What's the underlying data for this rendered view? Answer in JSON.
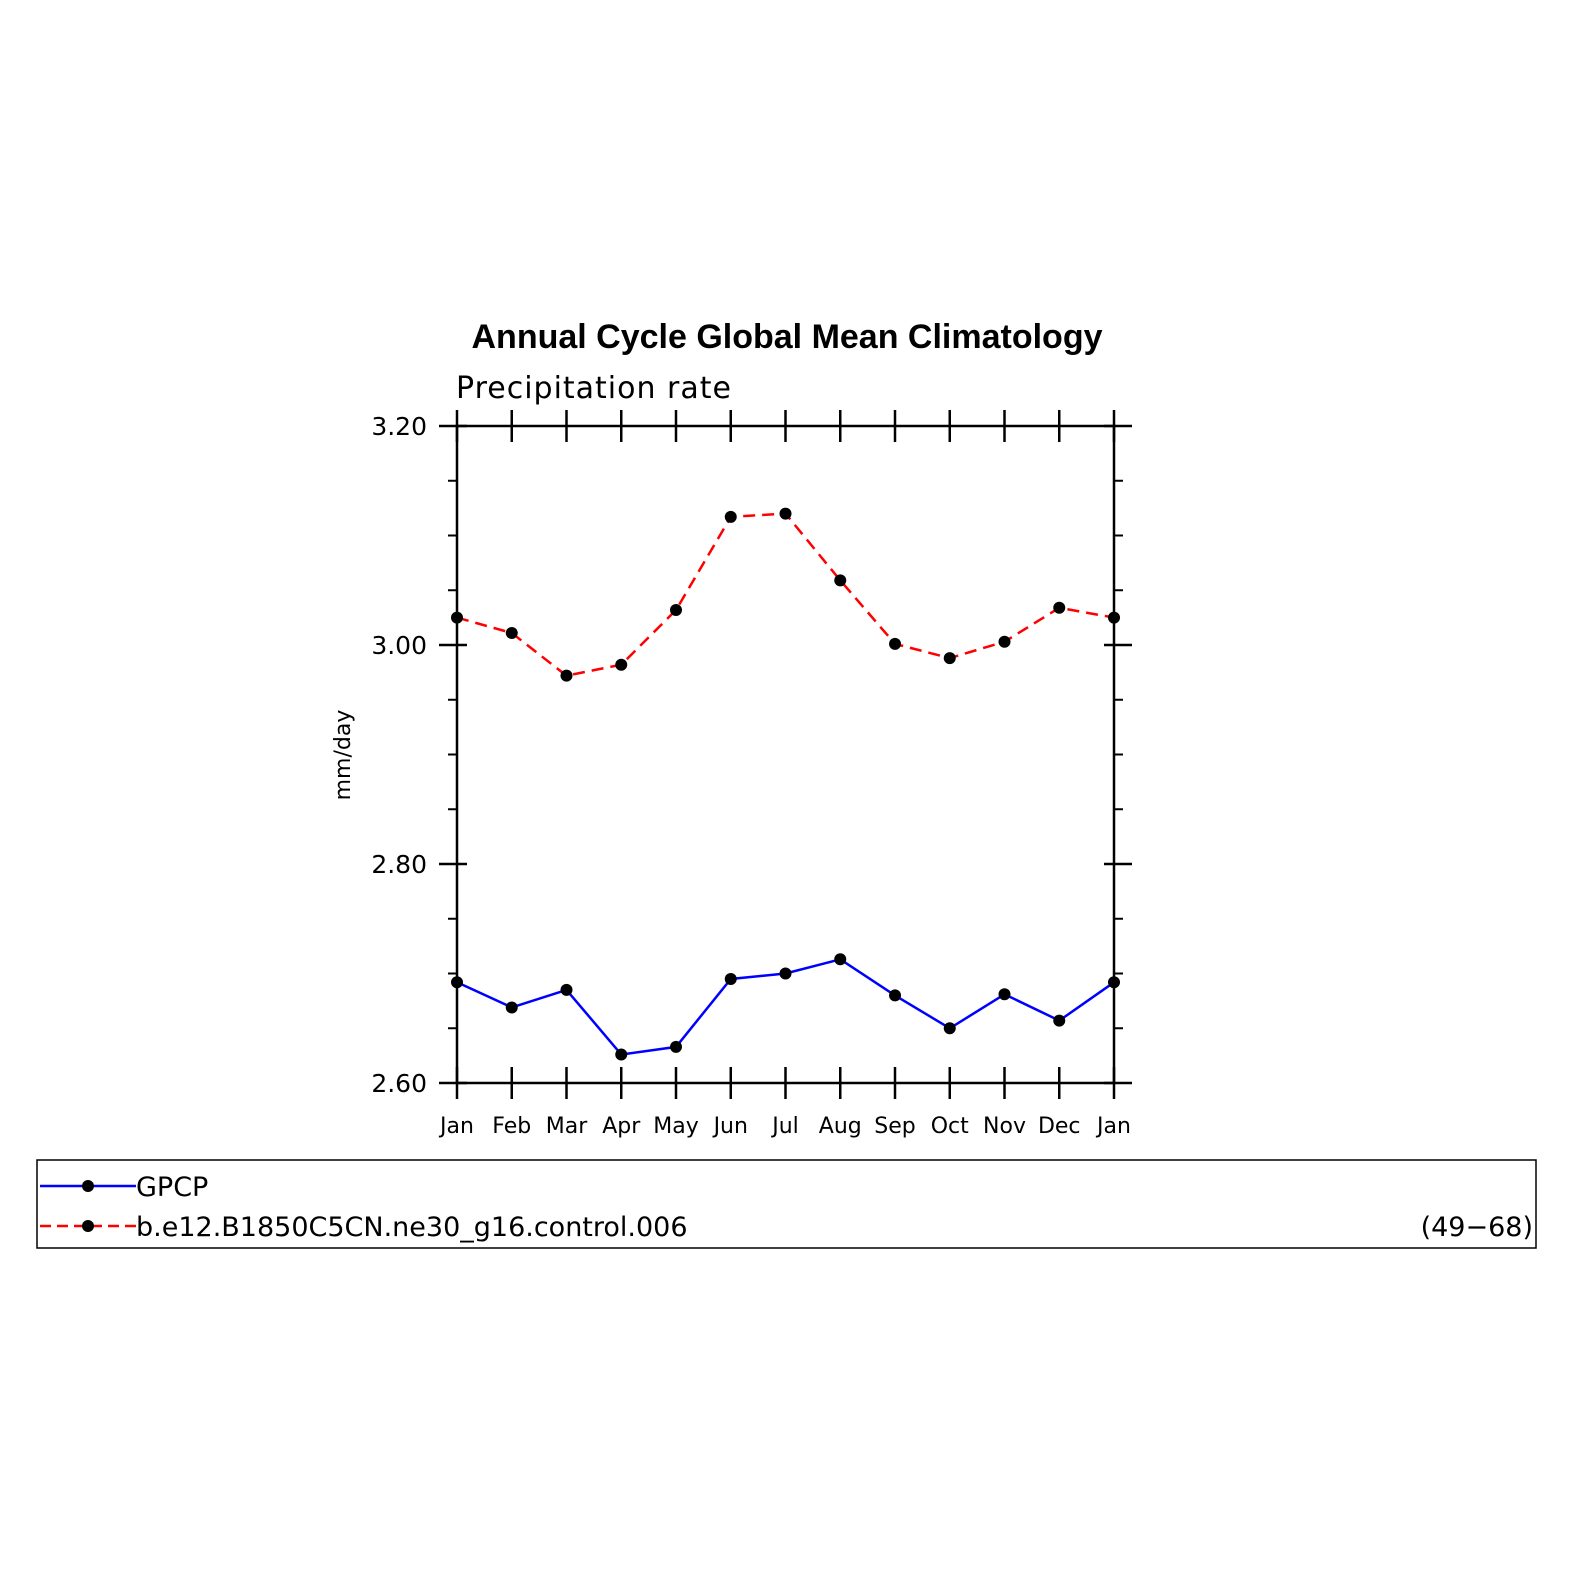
{
  "chart_data": {
    "type": "line",
    "title": "Annual Cycle Global Mean Climatology",
    "subtitle": "Precipitation rate",
    "xlabel": "",
    "ylabel": "mm/day",
    "categories": [
      "Jan",
      "Feb",
      "Mar",
      "Apr",
      "May",
      "Jun",
      "Jul",
      "Aug",
      "Sep",
      "Oct",
      "Nov",
      "Dec",
      "Jan"
    ],
    "ylim": [
      2.6,
      3.2
    ],
    "yticks": [
      2.6,
      2.8,
      3.0,
      3.2
    ],
    "ytick_labels": [
      "2.60",
      "2.80",
      "3.00",
      "3.20"
    ],
    "yminor_step": 0.05,
    "grid": false,
    "series": [
      {
        "name": "GPCP",
        "color": "#0000ff",
        "dashed": false,
        "values": [
          2.692,
          2.669,
          2.685,
          2.626,
          2.633,
          2.695,
          2.7,
          2.713,
          2.68,
          2.65,
          2.681,
          2.657,
          2.692
        ]
      },
      {
        "name": "b.e12.B1850C5CN.ne30_g16.control.006",
        "color": "#ff0000",
        "dashed": true,
        "values": [
          3.025,
          3.011,
          2.972,
          2.982,
          3.032,
          3.117,
          3.12,
          3.059,
          3.001,
          2.988,
          3.003,
          3.034,
          3.025
        ]
      }
    ],
    "legend": {
      "placement": "bottom",
      "note": "(49−68)"
    }
  }
}
